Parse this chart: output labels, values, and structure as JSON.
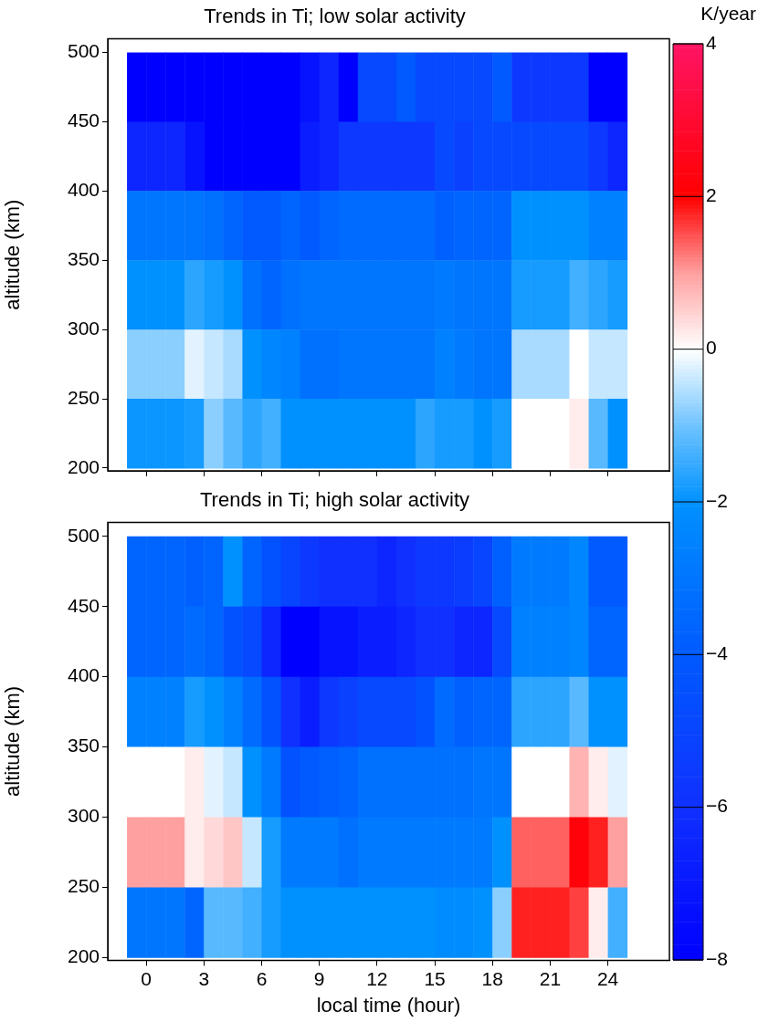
{
  "chart_data": [
    {
      "type": "heatmap",
      "title": "Trends in Ti; low solar activity",
      "ylabel": "altitude (km)",
      "clabel": "K/year",
      "x": [
        -0.5,
        0.5,
        1.5,
        2.5,
        3.5,
        4.5,
        5.5,
        6.5,
        7.5,
        8.5,
        9.5,
        10.5,
        11.5,
        12.5,
        13.5,
        14.5,
        15.5,
        16.5,
        17.5,
        18.5,
        19.5,
        20.5,
        21.5,
        22.5,
        23.5,
        24.5
      ],
      "y": [
        475,
        425,
        375,
        325,
        275,
        225
      ],
      "cells": [
        [
          -8,
          -8,
          -8,
          -8,
          -8,
          -8,
          -8,
          -8,
          -8,
          -7.2,
          -6.4,
          -8,
          -4.8,
          -4.8,
          -4,
          -4.8,
          -4.8,
          -4.8,
          -4.8,
          -4,
          -5.6,
          -5.6,
          -5.6,
          -5.6,
          -8,
          -8
        ],
        [
          -6.4,
          -6.4,
          -6.4,
          -7.2,
          -8,
          -8,
          -8,
          -8,
          -8,
          -6.8,
          -6.4,
          -5.6,
          -5.6,
          -5.6,
          -5.6,
          -5.6,
          -4.8,
          -5.2,
          -4.8,
          -4.8,
          -4.8,
          -4.8,
          -4.8,
          -4.8,
          -5.6,
          -6.4
        ],
        [
          -3,
          -3,
          -3,
          -3,
          -3.2,
          -3.6,
          -4,
          -4,
          -3.6,
          -4,
          -3.6,
          -3.4,
          -3.4,
          -3.4,
          -3.4,
          -3.4,
          -3.8,
          -3.6,
          -3.6,
          -3.6,
          -2,
          -2,
          -2,
          -2,
          -2.6,
          -2.6
        ],
        [
          -2,
          -2,
          -2,
          -1.6,
          -1.8,
          -2,
          -3.2,
          -3.6,
          -3.2,
          -3,
          -3,
          -3,
          -3,
          -3,
          -3,
          -3,
          -2.8,
          -3,
          -3,
          -3,
          -1.8,
          -1.8,
          -1.8,
          -1.4,
          -1.6,
          -1.8
        ],
        [
          -0.8,
          -0.8,
          -0.8,
          -0.2,
          -0.4,
          -0.6,
          -2,
          -2.4,
          -2.6,
          -3.2,
          -3.2,
          -3,
          -3,
          -3,
          -3,
          -3,
          -2.6,
          -2.8,
          -3,
          -3,
          -0.6,
          -0.6,
          -0.6,
          0,
          -0.4,
          -0.4
        ],
        [
          -1.9,
          -1.9,
          -1.9,
          -1.8,
          -0.8,
          -1.2,
          -1.6,
          -1.4,
          -2,
          -2,
          -2,
          -2,
          -2,
          -2,
          -2,
          -1.6,
          -1.8,
          -1.8,
          -2,
          -1.8,
          0,
          0,
          0,
          0.2,
          -1.2,
          -2
        ]
      ],
      "xlim": [
        -2,
        27.2
      ],
      "xticks": [
        0,
        3,
        6,
        9,
        12,
        15,
        18,
        21,
        24
      ],
      "ylim": [
        198,
        510
      ],
      "yticks": [
        200,
        250,
        300,
        350,
        400,
        450,
        500
      ],
      "clim": [
        -8,
        4
      ],
      "cticks": [
        0,
        2,
        4
      ],
      "tick_labels": "y"
    },
    {
      "type": "heatmap",
      "title": "Trends in Ti; high solar activity",
      "xlabel": "local time (hour)",
      "ylabel": "altitude (km)",
      "x": [
        -0.5,
        0.5,
        1.5,
        2.5,
        3.5,
        4.5,
        5.5,
        6.5,
        7.5,
        8.5,
        9.5,
        10.5,
        11.5,
        12.5,
        13.5,
        14.5,
        15.5,
        16.5,
        17.5,
        18.5,
        19.5,
        20.5,
        21.5,
        22.5,
        23.5,
        24.5
      ],
      "y": [
        475,
        425,
        375,
        325,
        275,
        225
      ],
      "cells": [
        [
          -3.6,
          -3.6,
          -3.6,
          -3.8,
          -3.6,
          -2,
          -3.6,
          -4.4,
          -5,
          -5.6,
          -6,
          -6,
          -6,
          -6.4,
          -6,
          -5.6,
          -5.6,
          -5.4,
          -5,
          -3.8,
          -2.8,
          -2.8,
          -2.8,
          -2.4,
          -4,
          -4
        ],
        [
          -3.6,
          -3.6,
          -3.6,
          -3.4,
          -3.6,
          -4.4,
          -4.8,
          -6.4,
          -8,
          -8,
          -7.2,
          -7.2,
          -6.8,
          -6.8,
          -6.4,
          -6,
          -6,
          -6.4,
          -6.4,
          -4.8,
          -2.6,
          -2.6,
          -2.6,
          -2.4,
          -3.6,
          -3.6
        ],
        [
          -2.6,
          -2.6,
          -2.6,
          -1.8,
          -2,
          -2.6,
          -3.4,
          -4.4,
          -6,
          -6.8,
          -5.6,
          -5.2,
          -4.8,
          -4.8,
          -4.8,
          -4.4,
          -3.4,
          -3.8,
          -3.6,
          -3.6,
          -1.6,
          -1.6,
          -1.6,
          -1.2,
          -2,
          -2
        ],
        [
          0,
          0,
          0,
          0.2,
          -0.2,
          -0.4,
          -2,
          -2.8,
          -4.4,
          -4,
          -3.8,
          -3.6,
          -3.2,
          -3.2,
          -3.2,
          -3.2,
          -3.2,
          -3.2,
          -3,
          -3,
          0,
          0,
          0,
          0.8,
          0.2,
          -0.2
        ],
        [
          1,
          1,
          1,
          0.2,
          0.4,
          0.6,
          -0.4,
          -1.8,
          -2.8,
          -2.8,
          -2.8,
          -3.2,
          -2.8,
          -2.8,
          -2.8,
          -2.8,
          -2.8,
          -2.8,
          -2.8,
          -2,
          1.4,
          1.4,
          1.4,
          2.2,
          1.8,
          1
        ],
        [
          -3,
          -3,
          -3,
          -3.6,
          -1.2,
          -1.2,
          -1.4,
          -1.8,
          -2,
          -2,
          -2,
          -2,
          -2,
          -2,
          -2,
          -2,
          -2.2,
          -2.2,
          -2,
          -0.8,
          1.8,
          1.8,
          1.8,
          1.6,
          0.2,
          -1.4
        ]
      ],
      "xlim": [
        -2,
        27.2
      ],
      "xticks": [
        0,
        3,
        6,
        9,
        12,
        15,
        18,
        21,
        24
      ],
      "ylim": [
        198,
        510
      ],
      "yticks": [
        200,
        250,
        300,
        350,
        400,
        450,
        500
      ],
      "clim": [
        -8,
        4
      ],
      "cticks": [
        -8,
        -6,
        -4,
        -2
      ]
    }
  ]
}
